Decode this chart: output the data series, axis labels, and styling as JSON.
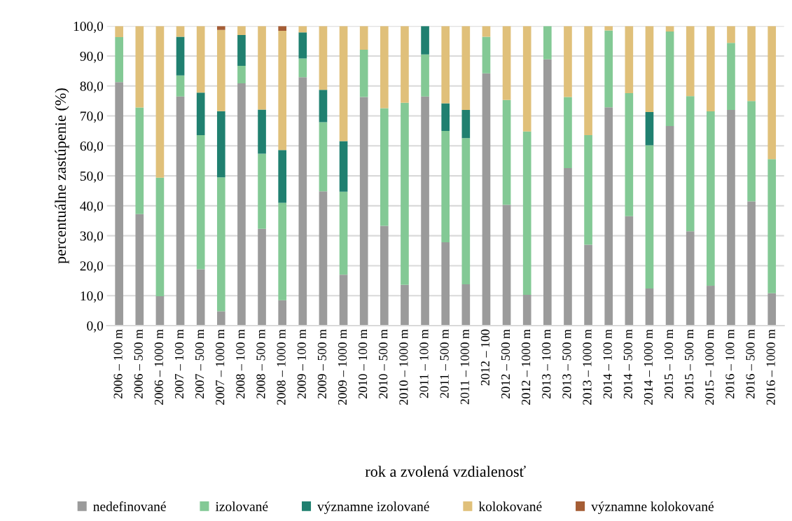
{
  "chart_data": {
    "type": "bar",
    "stacked": true,
    "xlabel": "rok a zvolená vzdialenosť",
    "ylabel": "percentuálne zastúpenie (%)",
    "categories": [
      "2006 – 100 m",
      "2006 – 500 m",
      "2006 – 1000 m",
      "2007 – 100 m",
      "2007 – 500 m",
      "2007 – 1000 m",
      "2008 – 100 m",
      "2008 – 500 m",
      "2008 – 1000 m",
      "2009 – 100 m",
      "2009 – 500 m",
      "2009 – 1000 m",
      "2010 – 100 m",
      "2010 – 500 m",
      "2010 – 1000 m",
      "2011 – 100 m",
      "2011 – 500 m",
      "2011 – 1000 m",
      "2012 – 100",
      "2012 – 500 m",
      "2012 – 1000 m",
      "2013 – 100 m",
      "2013 – 500 m",
      "2013 – 1000 m",
      "2014 – 100 m",
      "2014 – 500 m",
      "2014 – 1000 m",
      "2015 – 100 m",
      "2015 – 500 m",
      "2015 – 1000 m",
      "2016 – 100 m",
      "2016 – 500 m",
      "2016 – 1000 m"
    ],
    "series": [
      {
        "name": "nedefinované",
        "color": "#9b9b9b",
        "values": [
          81.3,
          37.2,
          9.8,
          76.5,
          18.8,
          4.8,
          80.9,
          32.3,
          8.5,
          82.9,
          44.8,
          17.0,
          76.3,
          33.3,
          13.6,
          76.5,
          27.8,
          13.8,
          84.2,
          40.3,
          10.3,
          88.9,
          52.6,
          27.0,
          72.9,
          36.5,
          12.4,
          66.6,
          31.5,
          13.3,
          72.0,
          41.5,
          10.8
        ]
      },
      {
        "name": "izolované",
        "color": "#83c995",
        "values": [
          15.0,
          35.6,
          39.6,
          7.0,
          44.8,
          44.7,
          5.8,
          25.1,
          32.5,
          6.3,
          23.1,
          27.7,
          15.8,
          39.3,
          60.8,
          14.0,
          37.2,
          48.8,
          12.2,
          35.0,
          54.5,
          11.1,
          23.7,
          36.6,
          25.6,
          41.1,
          47.8,
          31.6,
          45.1,
          58.2,
          22.4,
          33.5,
          44.8
        ]
      },
      {
        "name": "významne izolované",
        "color": "#208070",
        "values": [
          0,
          0,
          0,
          12.9,
          14.2,
          22.1,
          10.3,
          14.7,
          17.6,
          8.7,
          10.8,
          16.9,
          0,
          0,
          0,
          9.5,
          9.2,
          9.4,
          0,
          0,
          0,
          0,
          0,
          0,
          0,
          0,
          11.1,
          0,
          0,
          0,
          0,
          0,
          0
        ]
      },
      {
        "name": "kolokované",
        "color": "#e0c07a",
        "values": [
          3.7,
          27.2,
          50.6,
          3.6,
          22.2,
          27.1,
          3.0,
          27.9,
          39.8,
          2.1,
          21.3,
          38.4,
          7.9,
          27.4,
          25.6,
          0,
          25.8,
          28.0,
          3.6,
          24.7,
          35.2,
          0,
          23.7,
          36.4,
          1.5,
          22.4,
          28.7,
          1.8,
          23.4,
          28.5,
          5.6,
          25.0,
          44.4
        ]
      },
      {
        "name": "významne kolokované",
        "color": "#a55d35",
        "values": [
          0,
          0,
          0,
          0,
          0,
          1.3,
          0,
          0,
          1.6,
          0,
          0,
          0,
          0,
          0,
          0,
          0,
          0,
          0,
          0,
          0,
          0,
          0,
          0,
          0,
          0,
          0,
          0,
          0,
          0,
          0,
          0,
          0,
          0
        ]
      }
    ],
    "ylim": [
      0,
      100
    ],
    "yticks": [
      {
        "value": 0,
        "label": "0,0"
      },
      {
        "value": 10,
        "label": "10,0"
      },
      {
        "value": 20,
        "label": "20,0"
      },
      {
        "value": 30,
        "label": "30,0"
      },
      {
        "value": 40,
        "label": "40,0"
      },
      {
        "value": 50,
        "label": "50,0"
      },
      {
        "value": 60,
        "label": "60,0"
      },
      {
        "value": 70,
        "label": "70,0"
      },
      {
        "value": 80,
        "label": "80,0"
      },
      {
        "value": 90,
        "label": "90,0"
      },
      {
        "value": 100,
        "label": "100,0"
      }
    ],
    "grid": "y",
    "legend": "bottom"
  }
}
